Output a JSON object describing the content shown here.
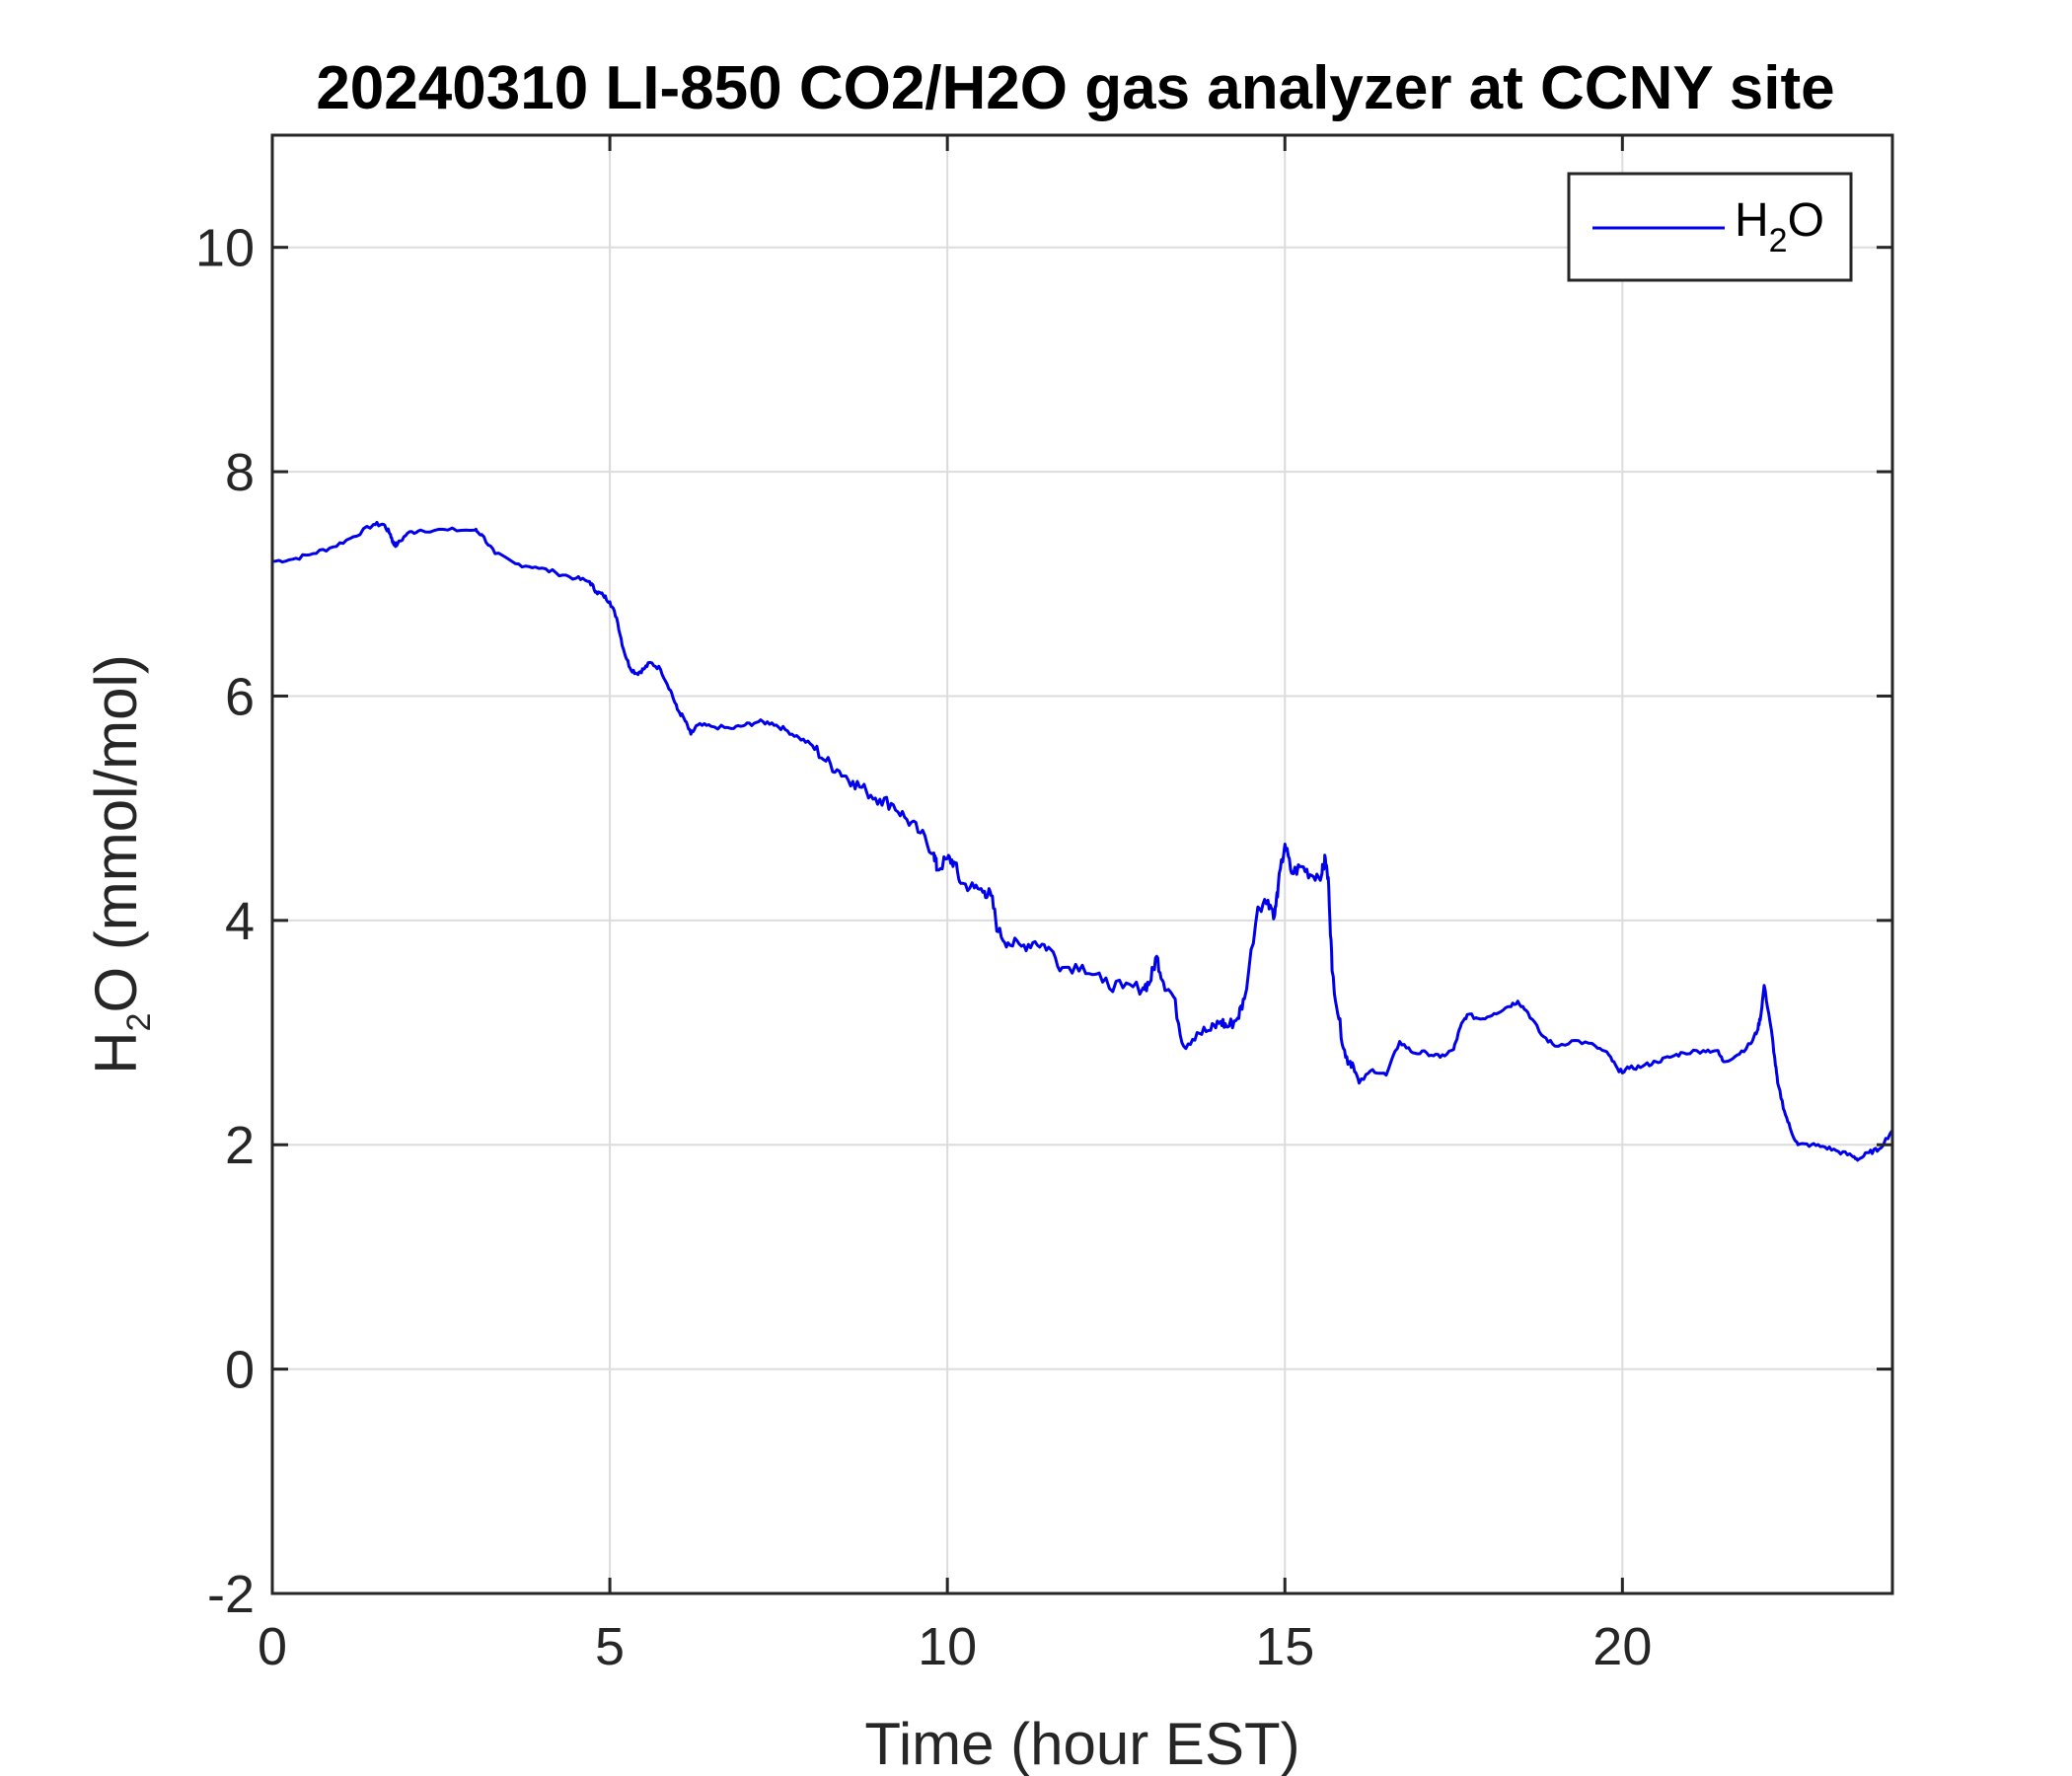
{
  "chart_data": {
    "type": "line",
    "title": "20240310 LI-850 CO2/H2O gas analyzer at CCNY site",
    "xlabel": "Time (hour EST)",
    "ylabel": {
      "main": "H",
      "sub": "2",
      "rest": "O (mmol/mol)"
    },
    "xlim": [
      0,
      24
    ],
    "ylim": [
      -2,
      11
    ],
    "xticks": [
      0,
      5,
      10,
      15,
      20
    ],
    "yticks": [
      -2,
      0,
      2,
      4,
      6,
      8,
      10
    ],
    "grid": true,
    "legend_position": "top-right",
    "legend": [
      {
        "main": "H",
        "sub": "2",
        "rest": "O"
      }
    ],
    "series": [
      {
        "name": "H2O",
        "color": "#0000ee",
        "x": [
          0,
          0.3,
          0.6,
          0.9,
          1.2,
          1.5,
          1.65,
          1.75,
          1.8,
          1.85,
          2.0,
          2.2,
          2.6,
          3.0,
          3.1,
          3.3,
          3.6,
          3.9,
          4.2,
          4.5,
          4.7,
          4.8,
          4.9,
          5.0,
          5.1,
          5.2,
          5.3,
          5.4,
          5.5,
          5.6,
          5.75,
          5.9,
          6.0,
          6.1,
          6.2,
          6.3,
          6.5,
          6.8,
          7.0,
          7.2,
          7.4,
          7.6,
          7.8,
          8.0,
          8.2,
          8.4,
          8.6,
          8.8,
          9.0,
          9.2,
          9.4,
          9.6,
          9.8,
          9.85,
          10.0,
          10.1,
          10.2,
          10.4,
          10.55,
          10.65,
          10.75,
          10.9,
          11.1,
          11.3,
          11.5,
          11.7,
          12.0,
          12.3,
          12.6,
          12.9,
          13.0,
          13.1,
          13.2,
          13.35,
          13.5,
          13.7,
          13.9,
          14.05,
          14.15,
          14.3,
          14.4,
          14.6,
          14.75,
          14.85,
          14.9,
          15.0,
          15.1,
          15.25,
          15.4,
          15.55,
          15.6,
          15.65,
          15.7,
          15.8,
          15.9,
          16.0,
          16.1,
          16.3,
          16.5,
          16.7,
          16.9,
          17.1,
          17.3,
          17.5,
          17.6,
          17.7,
          17.9,
          18.1,
          18.3,
          18.45,
          18.6,
          18.8,
          19.0,
          19.3,
          19.6,
          19.8,
          19.95,
          20.1,
          20.3,
          20.5,
          20.7,
          20.9,
          21.2,
          21.4,
          21.5,
          21.7,
          21.9,
          22.0,
          22.05,
          22.1,
          22.2,
          22.25,
          22.3,
          22.4,
          22.5,
          22.6,
          22.8,
          23.0,
          23.2,
          23.4,
          23.5,
          23.65,
          23.8,
          24.0
        ],
        "y": [
          7.2,
          7.22,
          7.27,
          7.33,
          7.42,
          7.53,
          7.53,
          7.44,
          7.35,
          7.35,
          7.45,
          7.48,
          7.48,
          7.48,
          7.44,
          7.27,
          7.18,
          7.15,
          7.1,
          7.05,
          7.02,
          6.93,
          6.9,
          6.84,
          6.7,
          6.42,
          6.25,
          6.2,
          6.24,
          6.3,
          6.24,
          6.05,
          5.88,
          5.8,
          5.66,
          5.74,
          5.73,
          5.71,
          5.74,
          5.77,
          5.76,
          5.7,
          5.63,
          5.56,
          5.42,
          5.33,
          5.24,
          5.15,
          5.08,
          5.03,
          4.9,
          4.78,
          4.6,
          4.45,
          4.55,
          4.52,
          4.33,
          4.29,
          4.26,
          4.22,
          3.9,
          3.8,
          3.77,
          3.81,
          3.76,
          3.58,
          3.6,
          3.45,
          3.4,
          3.4,
          3.45,
          3.68,
          3.45,
          3.32,
          2.88,
          3.0,
          3.02,
          3.1,
          3.05,
          3.13,
          3.3,
          4.12,
          4.18,
          4.05,
          4.3,
          4.68,
          4.42,
          4.48,
          4.4,
          4.42,
          4.55,
          4.3,
          3.55,
          3.12,
          2.78,
          2.73,
          2.55,
          2.67,
          2.62,
          2.92,
          2.82,
          2.82,
          2.78,
          2.85,
          3.05,
          3.16,
          3.12,
          3.17,
          3.23,
          3.28,
          3.18,
          2.98,
          2.88,
          2.93,
          2.88,
          2.8,
          2.65,
          2.68,
          2.7,
          2.74,
          2.78,
          2.82,
          2.84,
          2.84,
          2.74,
          2.8,
          2.9,
          3.02,
          3.15,
          3.42,
          3.05,
          2.8,
          2.55,
          2.3,
          2.12,
          2.0,
          2.0,
          1.98,
          1.94,
          1.9,
          1.87,
          1.93,
          1.96,
          2.13
        ]
      }
    ]
  }
}
